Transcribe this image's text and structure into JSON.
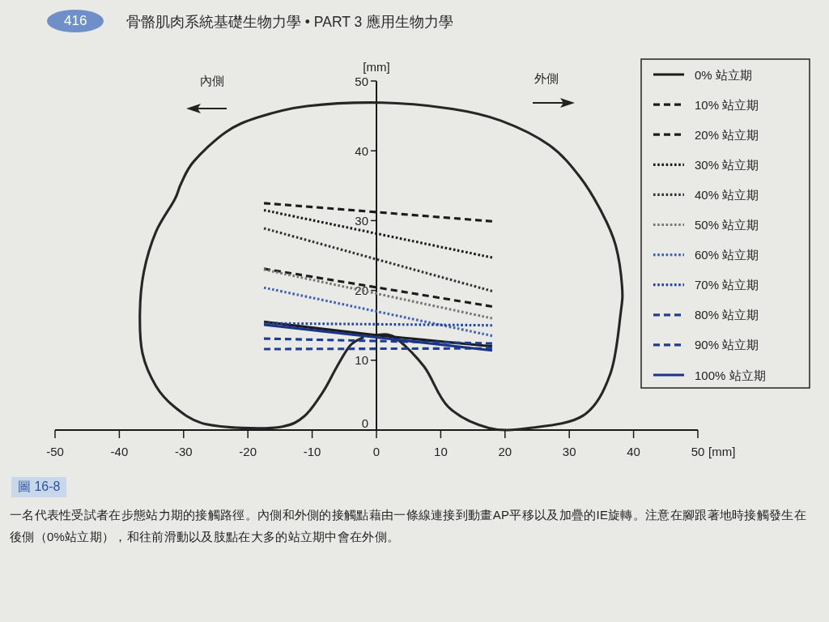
{
  "chart_data": {
    "type": "line",
    "title": "圖 16-8",
    "xlabel": "[mm]",
    "ylabel": "[mm]",
    "annotations": [
      "內側",
      "外側",
      "416",
      "骨骼肌肉系統基礎生物力學 • PART 3 應用生物力學",
      "一名代表性受試者在步態站力期的接觸路徑。內側和外側的接觸點藉由一條線連接到動畫AP平移以及加疊的IE旋轉。注意在腳跟著地時接觸發生在後側（0%站立期），和往前滑動以及肢點在大多的站立期中會在外側。"
    ],
    "xlim": [
      -50,
      50
    ],
    "ylim": [
      0,
      50
    ],
    "xticks": [
      -50,
      -40,
      -30,
      -20,
      -10,
      0,
      10,
      20,
      30,
      40,
      50
    ],
    "yticks": [
      0,
      10,
      20,
      30,
      40,
      50
    ],
    "legend": "top right",
    "series": [
      {
        "name": "0% 站立期",
        "color": "#1c1c1c",
        "line_style": "solid",
        "x": [
          -17.5,
          0,
          18
        ],
        "values": [
          15.5,
          13.6,
          12.0
        ]
      },
      {
        "name": "10% 站立期",
        "color": "#1c1c1c",
        "line_style": "dashed",
        "x": [
          -17.5,
          18
        ],
        "values": [
          23.1,
          17.7
        ]
      },
      {
        "name": "20% 站立期",
        "color": "#1c1c1c",
        "line_style": "dashed",
        "x": [
          -17.5,
          18
        ],
        "values": [
          32.5,
          29.9
        ]
      },
      {
        "name": "30% 站立期",
        "color": "#1c1c1c",
        "line_style": "dotted",
        "x": [
          -17.5,
          18
        ],
        "values": [
          31.5,
          24.7
        ]
      },
      {
        "name": "40% 站立期",
        "color": "#333333",
        "line_style": "dotted",
        "x": [
          -17.5,
          18
        ],
        "values": [
          28.9,
          19.9
        ]
      },
      {
        "name": "50% 站立期",
        "color": "#777777",
        "line_style": "dotted",
        "x": [
          -17.5,
          18
        ],
        "values": [
          23.0,
          16.0
        ]
      },
      {
        "name": "60% 站立期",
        "color": "#3f62b4",
        "line_style": "dotted",
        "x": [
          -17.5,
          18
        ],
        "values": [
          20.4,
          13.5
        ]
      },
      {
        "name": "70% 站立期",
        "color": "#2346a3",
        "line_style": "dotted",
        "x": [
          -17.5,
          18
        ],
        "values": [
          15.3,
          15.0
        ]
      },
      {
        "name": "80% 站立期",
        "color": "#1f3f9a",
        "line_style": "dashed",
        "x": [
          -17.5,
          18
        ],
        "values": [
          11.6,
          11.7
        ]
      },
      {
        "name": "90% 站立期",
        "color": "#1d3c94",
        "line_style": "dashed",
        "x": [
          -17.5,
          18
        ],
        "values": [
          13.1,
          12.4
        ]
      },
      {
        "name": "100% 站立期",
        "color": "#1a3488",
        "line_style": "solid",
        "x": [
          -17.5,
          18
        ],
        "values": [
          15.1,
          11.4
        ]
      },
      {
        "color": "#262626",
        "line_style": "solid",
        "x": [
          0,
          2.8,
          7.4,
          11.2,
          17.5,
          23.8,
          32.2,
          36.4,
          38.0,
          38.2,
          37.2,
          35.1,
          31.7,
          26.9,
          19.4,
          11.8,
          0.8,
          -10.8,
          -18.4,
          -23.4,
          -28.4,
          -30.4,
          -31.4,
          -34.3,
          -36.2,
          -36.8,
          -36.4,
          -34.3,
          -31.4,
          -27.2,
          -20.9,
          -14.6,
          -11.2,
          -8.3,
          -6.2,
          -4.1,
          -2.0
        ],
        "values": [
          13.6,
          13.3,
          9.1,
          3.3,
          0.3,
          0.3,
          2.1,
          8.1,
          16.8,
          20.7,
          26.5,
          31.1,
          36.2,
          40.8,
          44.3,
          46.0,
          46.9,
          46.4,
          44.8,
          42.7,
          38.5,
          35.3,
          33.0,
          28.4,
          22.6,
          16.8,
          11.0,
          6.3,
          3.3,
          1.0,
          0.3,
          0.5,
          2.0,
          5.5,
          9.0,
          12.1,
          13.3
        ]
      }
    ]
  }
}
